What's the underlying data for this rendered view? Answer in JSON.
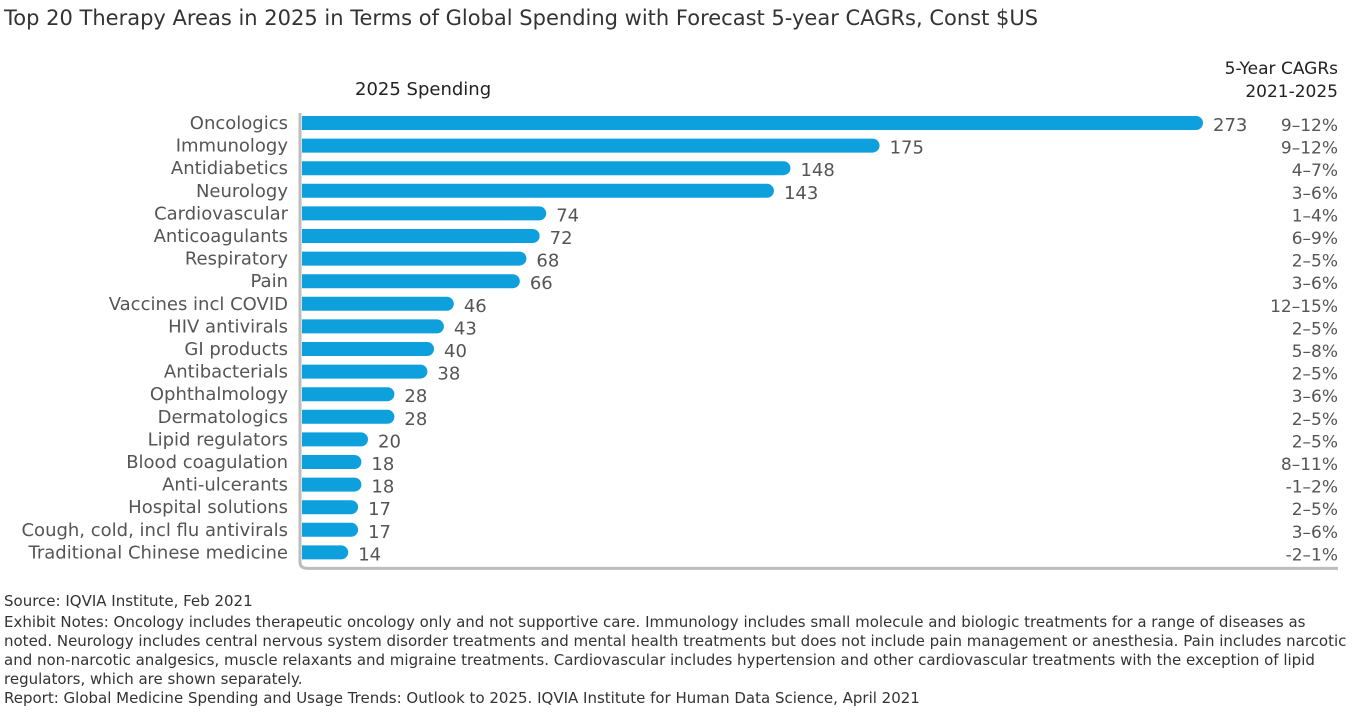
{
  "title": "Top 20 Therapy Areas in 2025 in Terms of Global Spending with Forecast 5-year CAGRs, Const $US",
  "headers": {
    "spending": "2025 Spending",
    "cagr_line1": "5-Year CAGRs",
    "cagr_line2": "2021-2025"
  },
  "chart_data": {
    "type": "bar",
    "orientation": "horizontal",
    "title": "Top 20 Therapy Areas in 2025 in Terms of Global Spending with Forecast 5-year CAGRs, Const $US",
    "xlabel": "2025 Spending",
    "ylabel": "",
    "xlim": [
      0,
      273
    ],
    "bar_color": "#0ea0dc",
    "categories": [
      "Oncologics",
      "Immunology",
      "Antidiabetics",
      "Neurology",
      "Cardiovascular",
      "Anticoagulants",
      "Respiratory",
      "Pain",
      "Vaccines incl COVID",
      "HIV antivirals",
      "GI products",
      "Antibacterials",
      "Ophthalmology",
      "Dermatologics",
      "Lipid regulators",
      "Blood coagulation",
      "Anti-ulcerants",
      "Hospital solutions",
      "Cough, cold, incl flu antivirals",
      "Traditional Chinese medicine"
    ],
    "values": [
      273,
      175,
      148,
      143,
      74,
      72,
      68,
      66,
      46,
      43,
      40,
      38,
      28,
      28,
      20,
      18,
      18,
      17,
      17,
      14
    ],
    "cagr": [
      "9–12%",
      "9–12%",
      "4–7%",
      "3–6%",
      "1–4%",
      "6–9%",
      "2–5%",
      "3–6%",
      "12–15%",
      "2–5%",
      "5–8%",
      "2–5%",
      "3–6%",
      "2–5%",
      "2–5%",
      "8–11%",
      "-1–2%",
      "2–5%",
      "3–6%",
      "-2–1%"
    ]
  },
  "notes": {
    "source": "Source: IQVIA Institute, Feb 2021",
    "exhibit": "Exhibit Notes: Oncology includes therapeutic oncology only and not supportive care. Immunology includes small molecule and biologic treatments for a range of diseases as noted. Neurology includes central nervous system disorder treatments and mental health treatments but does not include pain management or anesthesia. Pain includes narcotic and non-narcotic analgesics, muscle relaxants and migraine treatments. Cardiovascular includes hypertension and other cardiovascular treatments with the exception of lipid regulators, which are shown separately.",
    "report": "Report: Global Medicine Spending and Usage Trends: Outlook to 2025. IQVIA Institute for Human Data Science, April 2021"
  }
}
